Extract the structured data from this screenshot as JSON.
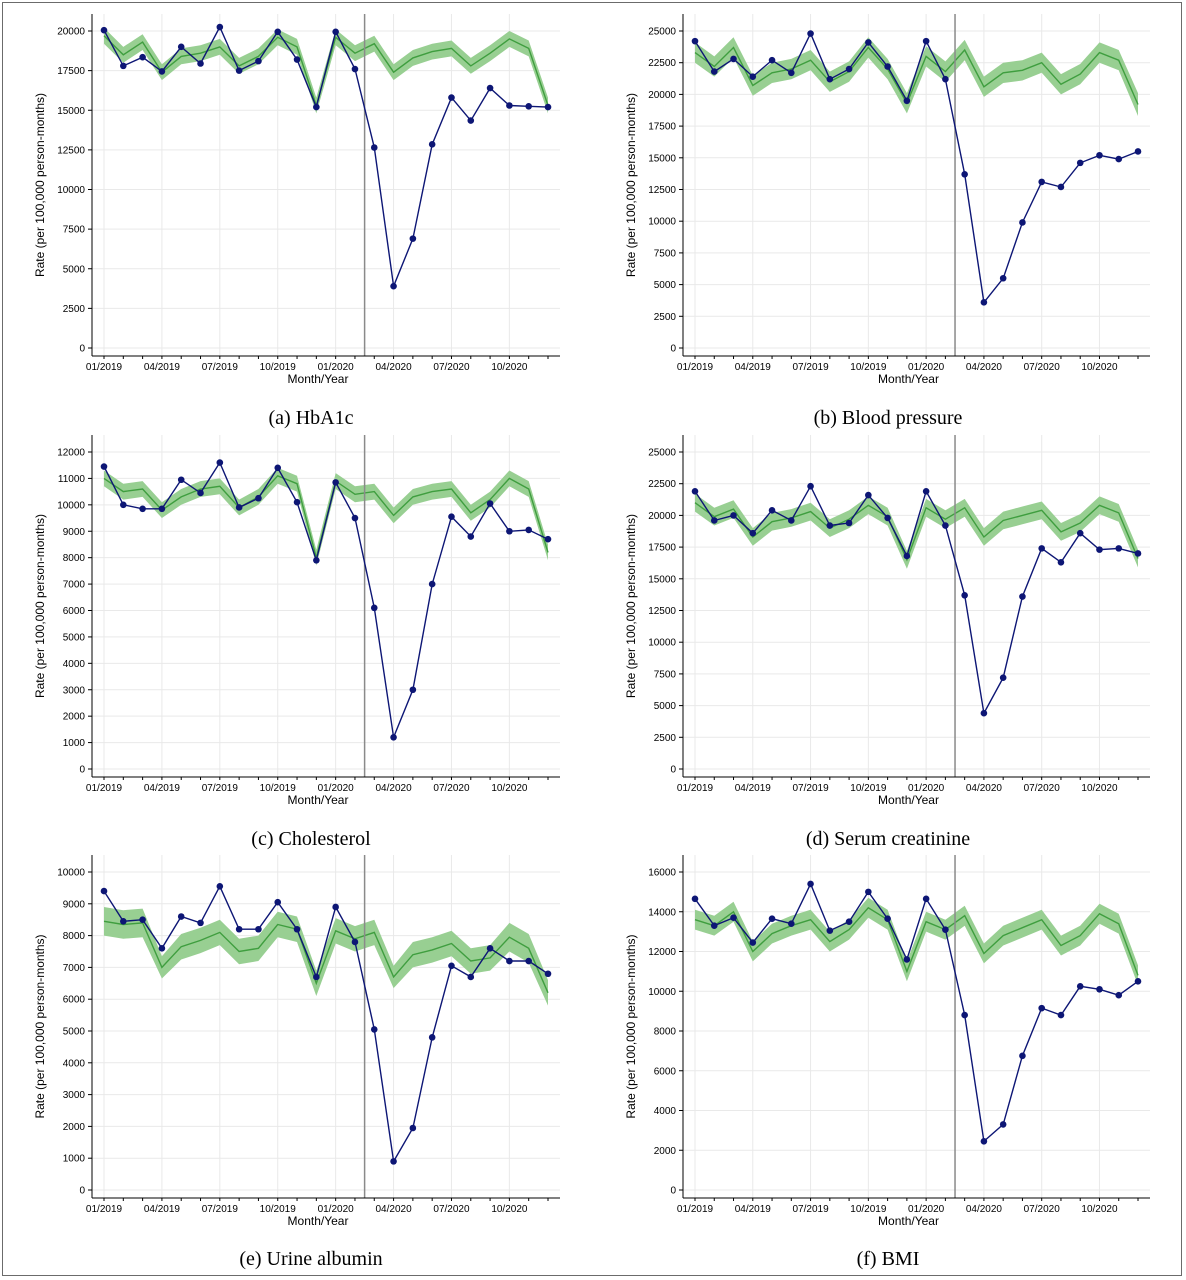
{
  "x_tick_labels": [
    "01/2019",
    "04/2019",
    "07/2019",
    "10/2019",
    "01/2020",
    "04/2020",
    "07/2020",
    "10/2020"
  ],
  "colors": {
    "observed": "#0d1675",
    "expected_line": "#3f9e3f",
    "expected_band": "#98cf92",
    "grid": "#e9e9e9",
    "cutoff": "#8a8a8a",
    "axis": "#000000"
  },
  "chart_data": [
    {
      "type": "line",
      "caption": "(a) HbA1c",
      "xlabel": "Month/Year",
      "ylabel": "Rate (per 100,000 person-months)",
      "ylim": [
        0,
        20000
      ],
      "y_ticks": [
        0,
        2500,
        5000,
        7500,
        10000,
        12500,
        15000,
        17500,
        20000
      ],
      "x_categories": [
        "01/2019",
        "02/2019",
        "03/2019",
        "04/2019",
        "05/2019",
        "06/2019",
        "07/2019",
        "08/2019",
        "09/2019",
        "10/2019",
        "11/2019",
        "12/2019",
        "01/2020",
        "02/2020",
        "03/2020",
        "04/2020",
        "05/2020",
        "06/2020",
        "07/2020",
        "08/2020",
        "09/2020",
        "10/2020",
        "11/2020",
        "12/2020"
      ],
      "cutoff_between": [
        "02/2020",
        "03/2020"
      ],
      "series": [
        {
          "name": "observed",
          "values": [
            20050,
            17800,
            18350,
            17450,
            19000,
            17950,
            20250,
            17500,
            18100,
            19950,
            18200,
            15200,
            19950,
            17600,
            12650,
            3900,
            6900,
            12850,
            15800,
            14350,
            16400,
            15300,
            15250,
            15200
          ]
        },
        {
          "name": "expected",
          "values": [
            19700,
            18500,
            19300,
            17400,
            18400,
            18600,
            19000,
            17800,
            18400,
            19600,
            19000,
            15300,
            19600,
            18600,
            19200,
            17400,
            18300,
            18700,
            18900,
            17800,
            18600,
            19500,
            18900,
            15300
          ],
          "lower": [
            19200,
            18000,
            18800,
            16900,
            17900,
            18100,
            18500,
            17300,
            17900,
            19100,
            18500,
            14800,
            19100,
            18100,
            18700,
            16900,
            17800,
            18200,
            18400,
            17300,
            18100,
            19000,
            18400,
            14800
          ],
          "upper": [
            20200,
            19000,
            19800,
            17900,
            18900,
            19100,
            19500,
            18300,
            18900,
            20100,
            19500,
            15800,
            20100,
            19100,
            19700,
            17900,
            18800,
            19200,
            19400,
            18300,
            19100,
            20000,
            19400,
            15800
          ]
        }
      ]
    },
    {
      "type": "line",
      "caption": "(b) Blood pressure",
      "xlabel": "Month/Year",
      "ylabel": "Rate (per 100,000 person-months)",
      "ylim": [
        0,
        25000
      ],
      "y_ticks": [
        0,
        2500,
        5000,
        7500,
        10000,
        12500,
        15000,
        17500,
        20000,
        22500,
        25000
      ],
      "x_categories": [
        "01/2019",
        "02/2019",
        "03/2019",
        "04/2019",
        "05/2019",
        "06/2019",
        "07/2019",
        "08/2019",
        "09/2019",
        "10/2019",
        "11/2019",
        "12/2019",
        "01/2020",
        "02/2020",
        "03/2020",
        "04/2020",
        "05/2020",
        "06/2020",
        "07/2020",
        "08/2020",
        "09/2020",
        "10/2020",
        "11/2020",
        "12/2020"
      ],
      "cutoff_between": [
        "02/2020",
        "03/2020"
      ],
      "series": [
        {
          "name": "observed",
          "values": [
            24200,
            21800,
            22800,
            21400,
            22700,
            21700,
            24800,
            21200,
            22000,
            24100,
            22200,
            19500,
            24200,
            21200,
            13700,
            3600,
            5500,
            9900,
            13100,
            12700,
            14600,
            15200,
            14900,
            15500
          ]
        },
        {
          "name": "expected",
          "values": [
            23300,
            22200,
            23700,
            20700,
            21700,
            22000,
            22700,
            21000,
            21800,
            23700,
            22000,
            19300,
            23000,
            21800,
            23500,
            20600,
            21700,
            21900,
            22500,
            20800,
            21600,
            23300,
            22700,
            19200
          ],
          "lower": [
            22500,
            21400,
            22900,
            19900,
            20900,
            21200,
            21900,
            20200,
            21000,
            22900,
            21200,
            18500,
            22200,
            21000,
            22700,
            19800,
            20900,
            21100,
            21700,
            20000,
            20800,
            22500,
            21900,
            18300
          ],
          "upper": [
            24100,
            23000,
            24500,
            21500,
            22500,
            22800,
            23500,
            21800,
            22600,
            24500,
            22800,
            20100,
            23800,
            22600,
            24300,
            21400,
            22500,
            22700,
            23300,
            21600,
            22400,
            24100,
            23500,
            20100
          ]
        }
      ]
    },
    {
      "type": "line",
      "caption": "(c) Cholesterol",
      "xlabel": "Month/Year",
      "ylabel": "Rate (per 100,000 person-months)",
      "ylim": [
        0,
        12000
      ],
      "y_ticks": [
        0,
        1000,
        2000,
        3000,
        4000,
        5000,
        6000,
        7000,
        8000,
        9000,
        10000,
        11000,
        12000
      ],
      "x_categories": [
        "01/2019",
        "02/2019",
        "03/2019",
        "04/2019",
        "05/2019",
        "06/2019",
        "07/2019",
        "08/2019",
        "09/2019",
        "10/2019",
        "11/2019",
        "12/2019",
        "01/2020",
        "02/2020",
        "03/2020",
        "04/2020",
        "05/2020",
        "06/2020",
        "07/2020",
        "08/2020",
        "09/2020",
        "10/2020",
        "11/2020",
        "12/2020"
      ],
      "cutoff_between": [
        "02/2020",
        "03/2020"
      ],
      "series": [
        {
          "name": "observed",
          "values": [
            11450,
            10000,
            9850,
            9850,
            10950,
            10450,
            11600,
            9900,
            10250,
            11400,
            10100,
            7900,
            10850,
            9500,
            6100,
            1200,
            3000,
            7000,
            9550,
            8800,
            10050,
            9000,
            9050,
            8700
          ]
        },
        {
          "name": "expected",
          "values": [
            11000,
            10500,
            10600,
            9800,
            10300,
            10600,
            10700,
            9900,
            10300,
            11100,
            10800,
            8000,
            10900,
            10400,
            10500,
            9600,
            10300,
            10500,
            10600,
            9700,
            10200,
            11000,
            10600,
            8200
          ],
          "lower": [
            10700,
            10200,
            10300,
            9500,
            10000,
            10300,
            10400,
            9600,
            10000,
            10800,
            10500,
            7700,
            10600,
            10100,
            10200,
            9300,
            10000,
            10200,
            10300,
            9400,
            9900,
            10700,
            10300,
            7900
          ],
          "upper": [
            11300,
            10800,
            10900,
            10100,
            10600,
            10900,
            11000,
            10200,
            10600,
            11400,
            11100,
            8300,
            11200,
            10700,
            10800,
            9900,
            10600,
            10800,
            10900,
            10000,
            10500,
            11300,
            10900,
            8500
          ]
        }
      ]
    },
    {
      "type": "line",
      "caption": "(d) Serum creatinine",
      "xlabel": "Month/Year",
      "ylabel": "Rate (per 100,000 person-months)",
      "ylim": [
        0,
        25000
      ],
      "y_ticks": [
        0,
        2500,
        5000,
        7500,
        10000,
        12500,
        15000,
        17500,
        20000,
        22500,
        25000
      ],
      "x_categories": [
        "01/2019",
        "02/2019",
        "03/2019",
        "04/2019",
        "05/2019",
        "06/2019",
        "07/2019",
        "08/2019",
        "09/2019",
        "10/2019",
        "11/2019",
        "12/2019",
        "01/2020",
        "02/2020",
        "03/2020",
        "04/2020",
        "05/2020",
        "06/2020",
        "07/2020",
        "08/2020",
        "09/2020",
        "10/2020",
        "11/2020",
        "12/2020"
      ],
      "cutoff_between": [
        "02/2020",
        "03/2020"
      ],
      "series": [
        {
          "name": "observed",
          "values": [
            21900,
            19600,
            20000,
            18600,
            20400,
            19600,
            22300,
            19200,
            19400,
            21600,
            19800,
            16800,
            21900,
            19200,
            13700,
            4400,
            7200,
            13600,
            17400,
            16300,
            18600,
            17300,
            17400,
            17000
          ]
        },
        {
          "name": "expected",
          "values": [
            21000,
            19900,
            20500,
            18300,
            19500,
            19800,
            20300,
            19000,
            19700,
            20800,
            19900,
            16500,
            20600,
            19700,
            20600,
            18300,
            19600,
            20000,
            20400,
            18700,
            19400,
            20800,
            20200,
            16600
          ],
          "lower": [
            20300,
            19200,
            19800,
            17600,
            18800,
            19100,
            19600,
            18300,
            19000,
            20100,
            19200,
            15800,
            19900,
            19000,
            19900,
            17600,
            18900,
            19300,
            19700,
            18000,
            18700,
            20100,
            19500,
            15900
          ],
          "upper": [
            21700,
            20600,
            21200,
            19000,
            20200,
            20500,
            21000,
            19700,
            20400,
            21500,
            20600,
            17200,
            21300,
            20400,
            21300,
            19000,
            20300,
            20700,
            21100,
            19400,
            20100,
            21500,
            20900,
            17300
          ]
        }
      ]
    },
    {
      "type": "line",
      "caption": "(e) Urine albumin",
      "xlabel": "Month/Year",
      "ylabel": "Rate (per 100,000 person-months)",
      "ylim": [
        0,
        10000
      ],
      "y_ticks": [
        0,
        1000,
        2000,
        3000,
        4000,
        5000,
        6000,
        7000,
        8000,
        9000,
        10000
      ],
      "x_categories": [
        "01/2019",
        "02/2019",
        "03/2019",
        "04/2019",
        "05/2019",
        "06/2019",
        "07/2019",
        "08/2019",
        "09/2019",
        "10/2019",
        "11/2019",
        "12/2019",
        "01/2020",
        "02/2020",
        "03/2020",
        "04/2020",
        "05/2020",
        "06/2020",
        "07/2020",
        "08/2020",
        "09/2020",
        "10/2020",
        "11/2020",
        "12/2020"
      ],
      "cutoff_between": [
        "02/2020",
        "03/2020"
      ],
      "series": [
        {
          "name": "observed",
          "values": [
            9400,
            8450,
            8500,
            7600,
            8600,
            8400,
            9550,
            8200,
            8200,
            9050,
            8200,
            6700,
            8900,
            7800,
            5050,
            900,
            1950,
            4800,
            7050,
            6700,
            7600,
            7200,
            7200,
            6800
          ]
        },
        {
          "name": "expected",
          "values": [
            8450,
            8350,
            8400,
            7000,
            7650,
            7850,
            8100,
            7500,
            7600,
            8350,
            8200,
            6500,
            8150,
            7900,
            8100,
            6700,
            7400,
            7550,
            7750,
            7200,
            7300,
            7950,
            7600,
            6200
          ],
          "lower": [
            8000,
            7900,
            7950,
            6650,
            7250,
            7450,
            7700,
            7100,
            7200,
            7950,
            7800,
            6100,
            7750,
            7500,
            7700,
            6350,
            7000,
            7150,
            7350,
            6800,
            6900,
            7500,
            7150,
            5800
          ],
          "upper": [
            8900,
            8800,
            8850,
            7350,
            8050,
            8250,
            8500,
            7900,
            8000,
            8750,
            8600,
            6900,
            8550,
            8300,
            8500,
            7050,
            7800,
            7950,
            8150,
            7600,
            7700,
            8400,
            8050,
            6600
          ]
        }
      ]
    },
    {
      "type": "line",
      "caption": "(f) BMI",
      "xlabel": "Month/Year",
      "ylabel": "Rate (per 100,000 person-months)",
      "ylim": [
        0,
        16000
      ],
      "y_ticks": [
        0,
        2000,
        4000,
        6000,
        8000,
        10000,
        12000,
        14000,
        16000
      ],
      "x_categories": [
        "01/2019",
        "02/2019",
        "03/2019",
        "04/2019",
        "05/2019",
        "06/2019",
        "07/2019",
        "08/2019",
        "09/2019",
        "10/2019",
        "11/2019",
        "12/2019",
        "01/2020",
        "02/2020",
        "03/2020",
        "04/2020",
        "05/2020",
        "06/2020",
        "07/2020",
        "08/2020",
        "09/2020",
        "10/2020",
        "11/2020",
        "12/2020"
      ],
      "cutoff_between": [
        "02/2020",
        "03/2020"
      ],
      "series": [
        {
          "name": "observed",
          "values": [
            14650,
            13300,
            13700,
            12450,
            13650,
            13400,
            15400,
            13050,
            13500,
            15000,
            13650,
            11600,
            14650,
            13100,
            8800,
            2450,
            3300,
            6750,
            9150,
            8800,
            10250,
            10100,
            9800,
            10500
          ]
        },
        {
          "name": "expected",
          "values": [
            13600,
            13300,
            14000,
            12000,
            12900,
            13300,
            13600,
            12500,
            13100,
            14200,
            13600,
            11000,
            13500,
            13100,
            13800,
            11900,
            12800,
            13200,
            13600,
            12300,
            12800,
            13900,
            13400,
            10800
          ],
          "lower": [
            13100,
            12800,
            13500,
            11500,
            12400,
            12800,
            13100,
            12000,
            12600,
            13700,
            13100,
            10500,
            13000,
            12600,
            13300,
            11400,
            12300,
            12700,
            13100,
            11800,
            12300,
            13400,
            12900,
            10300
          ],
          "upper": [
            14100,
            13800,
            14500,
            12500,
            13400,
            13800,
            14100,
            13000,
            13600,
            14700,
            14100,
            11500,
            14000,
            13600,
            14300,
            12400,
            13300,
            13700,
            14100,
            12800,
            13300,
            14400,
            13900,
            11300
          ]
        }
      ]
    }
  ]
}
